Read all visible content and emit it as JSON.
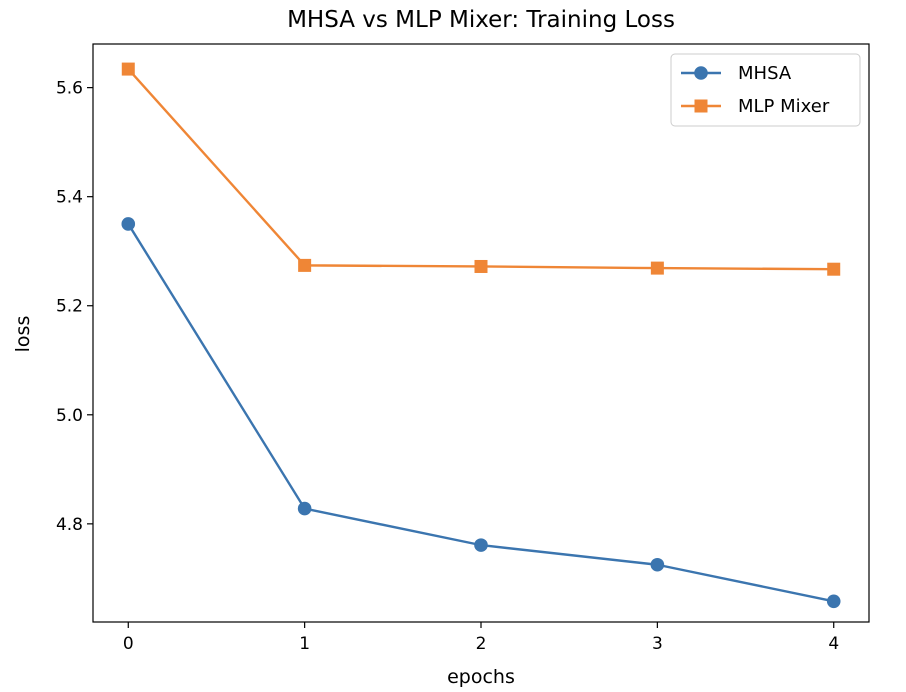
{
  "chart_data": {
    "type": "line",
    "title": "MHSA vs MLP Mixer: Training Loss",
    "xlabel": "epochs",
    "ylabel": "loss",
    "x": [
      0,
      1,
      2,
      3,
      4
    ],
    "xlim": [
      -0.2,
      4.2
    ],
    "ylim": [
      4.62,
      5.68
    ],
    "x_ticks": [
      0,
      1,
      2,
      3,
      4
    ],
    "x_tick_labels": [
      "0",
      "1",
      "2",
      "3",
      "4"
    ],
    "y_ticks": [
      4.8,
      5.0,
      5.2,
      5.4,
      5.6
    ],
    "y_tick_labels": [
      "4.8",
      "5.0",
      "5.2",
      "5.4",
      "5.6"
    ],
    "grid": false,
    "legend_position": "top-right",
    "series": [
      {
        "name": "MHSA",
        "values": [
          5.35,
          4.828,
          4.761,
          4.725,
          4.658
        ],
        "color": "#3b75af",
        "marker": "circle"
      },
      {
        "name": "MLP Mixer",
        "values": [
          5.634,
          5.274,
          5.272,
          5.269,
          5.267
        ],
        "color": "#ef8636",
        "marker": "square"
      }
    ]
  }
}
